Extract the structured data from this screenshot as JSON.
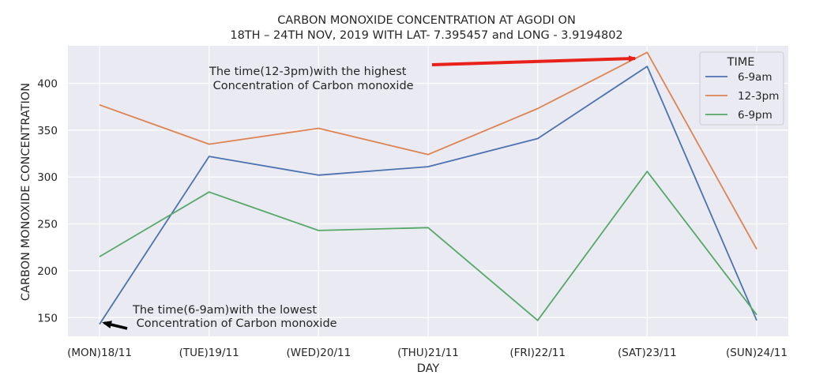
{
  "chart_data": {
    "type": "line",
    "title_line1": "CARBON MONOXIDE CONCENTRATION AT AGODI ON",
    "title_line2": "18TH – 24TH NOV, 2019 WITH LAT- 7.395457 and LONG - 3.9194802",
    "xlabel": "DAY",
    "ylabel": "CARBON MONOXIDE CONCENTRATION",
    "categories": [
      "(MON)18/11",
      "(TUE)19/11",
      "(WED)20/11",
      "(THU)21/11",
      "(FRI)22/11",
      "(SAT)23/11",
      "(SUN)24/11"
    ],
    "yticks": [
      150,
      200,
      250,
      300,
      350,
      400
    ],
    "ylim": [
      130,
      440
    ],
    "grid": true,
    "legend": {
      "title": "TIME",
      "placement": "top-right"
    },
    "series": [
      {
        "name": "6-9am",
        "color": "#4c72b0",
        "values": [
          143,
          322,
          302,
          311,
          341,
          418,
          147
        ]
      },
      {
        "name": "12-3pm",
        "color": "#dd8452",
        "values": [
          377,
          335,
          352,
          324,
          373,
          433,
          223
        ]
      },
      {
        "name": "6-9pm",
        "color": "#55a868",
        "values": [
          215,
          284,
          243,
          246,
          147,
          306,
          153
        ]
      }
    ],
    "annotations": [
      {
        "id": "highest",
        "line1": "The time(12-3pm)with the highest",
        "line2": " Concentration of Carbon monoxide",
        "arrow_color": "#e8221b",
        "target_series": 1,
        "target_index": 5
      },
      {
        "id": "lowest",
        "line1": "The time(6-9am)with the lowest",
        "line2": " Concentration of Carbon monoxide",
        "arrow_color": "#000000",
        "target_series": 0,
        "target_index": 0
      }
    ]
  }
}
